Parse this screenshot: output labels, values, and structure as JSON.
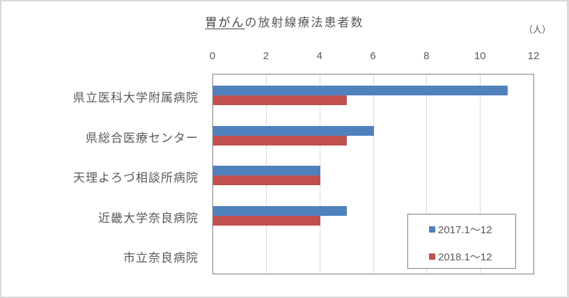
{
  "chart_data": {
    "type": "bar",
    "orientation": "horizontal",
    "title_underlined": "胃がん",
    "title_rest": "の放射線療法患者数",
    "title": "胃がんの放射線療法患者数",
    "unit_label": "（人）",
    "xlabel": "",
    "ylabel": "",
    "xlim": [
      0,
      12
    ],
    "ticks": [
      "0",
      "2",
      "4",
      "6",
      "8",
      "10",
      "12"
    ],
    "grid": true,
    "legend_position": "inside-bottom-right",
    "categories": [
      "県立医科大学附属病院",
      "県総合医療センター",
      "天理よろづ相談所病院",
      "近畿大学奈良病院",
      "市立奈良病院"
    ],
    "series": [
      {
        "name": "2017.1～12",
        "color": "#4f81bd",
        "values": [
          11,
          6,
          4,
          5,
          0
        ]
      },
      {
        "name": "2018.1～12",
        "color": "#c0504d",
        "values": [
          5,
          5,
          4,
          4,
          0
        ]
      }
    ]
  }
}
